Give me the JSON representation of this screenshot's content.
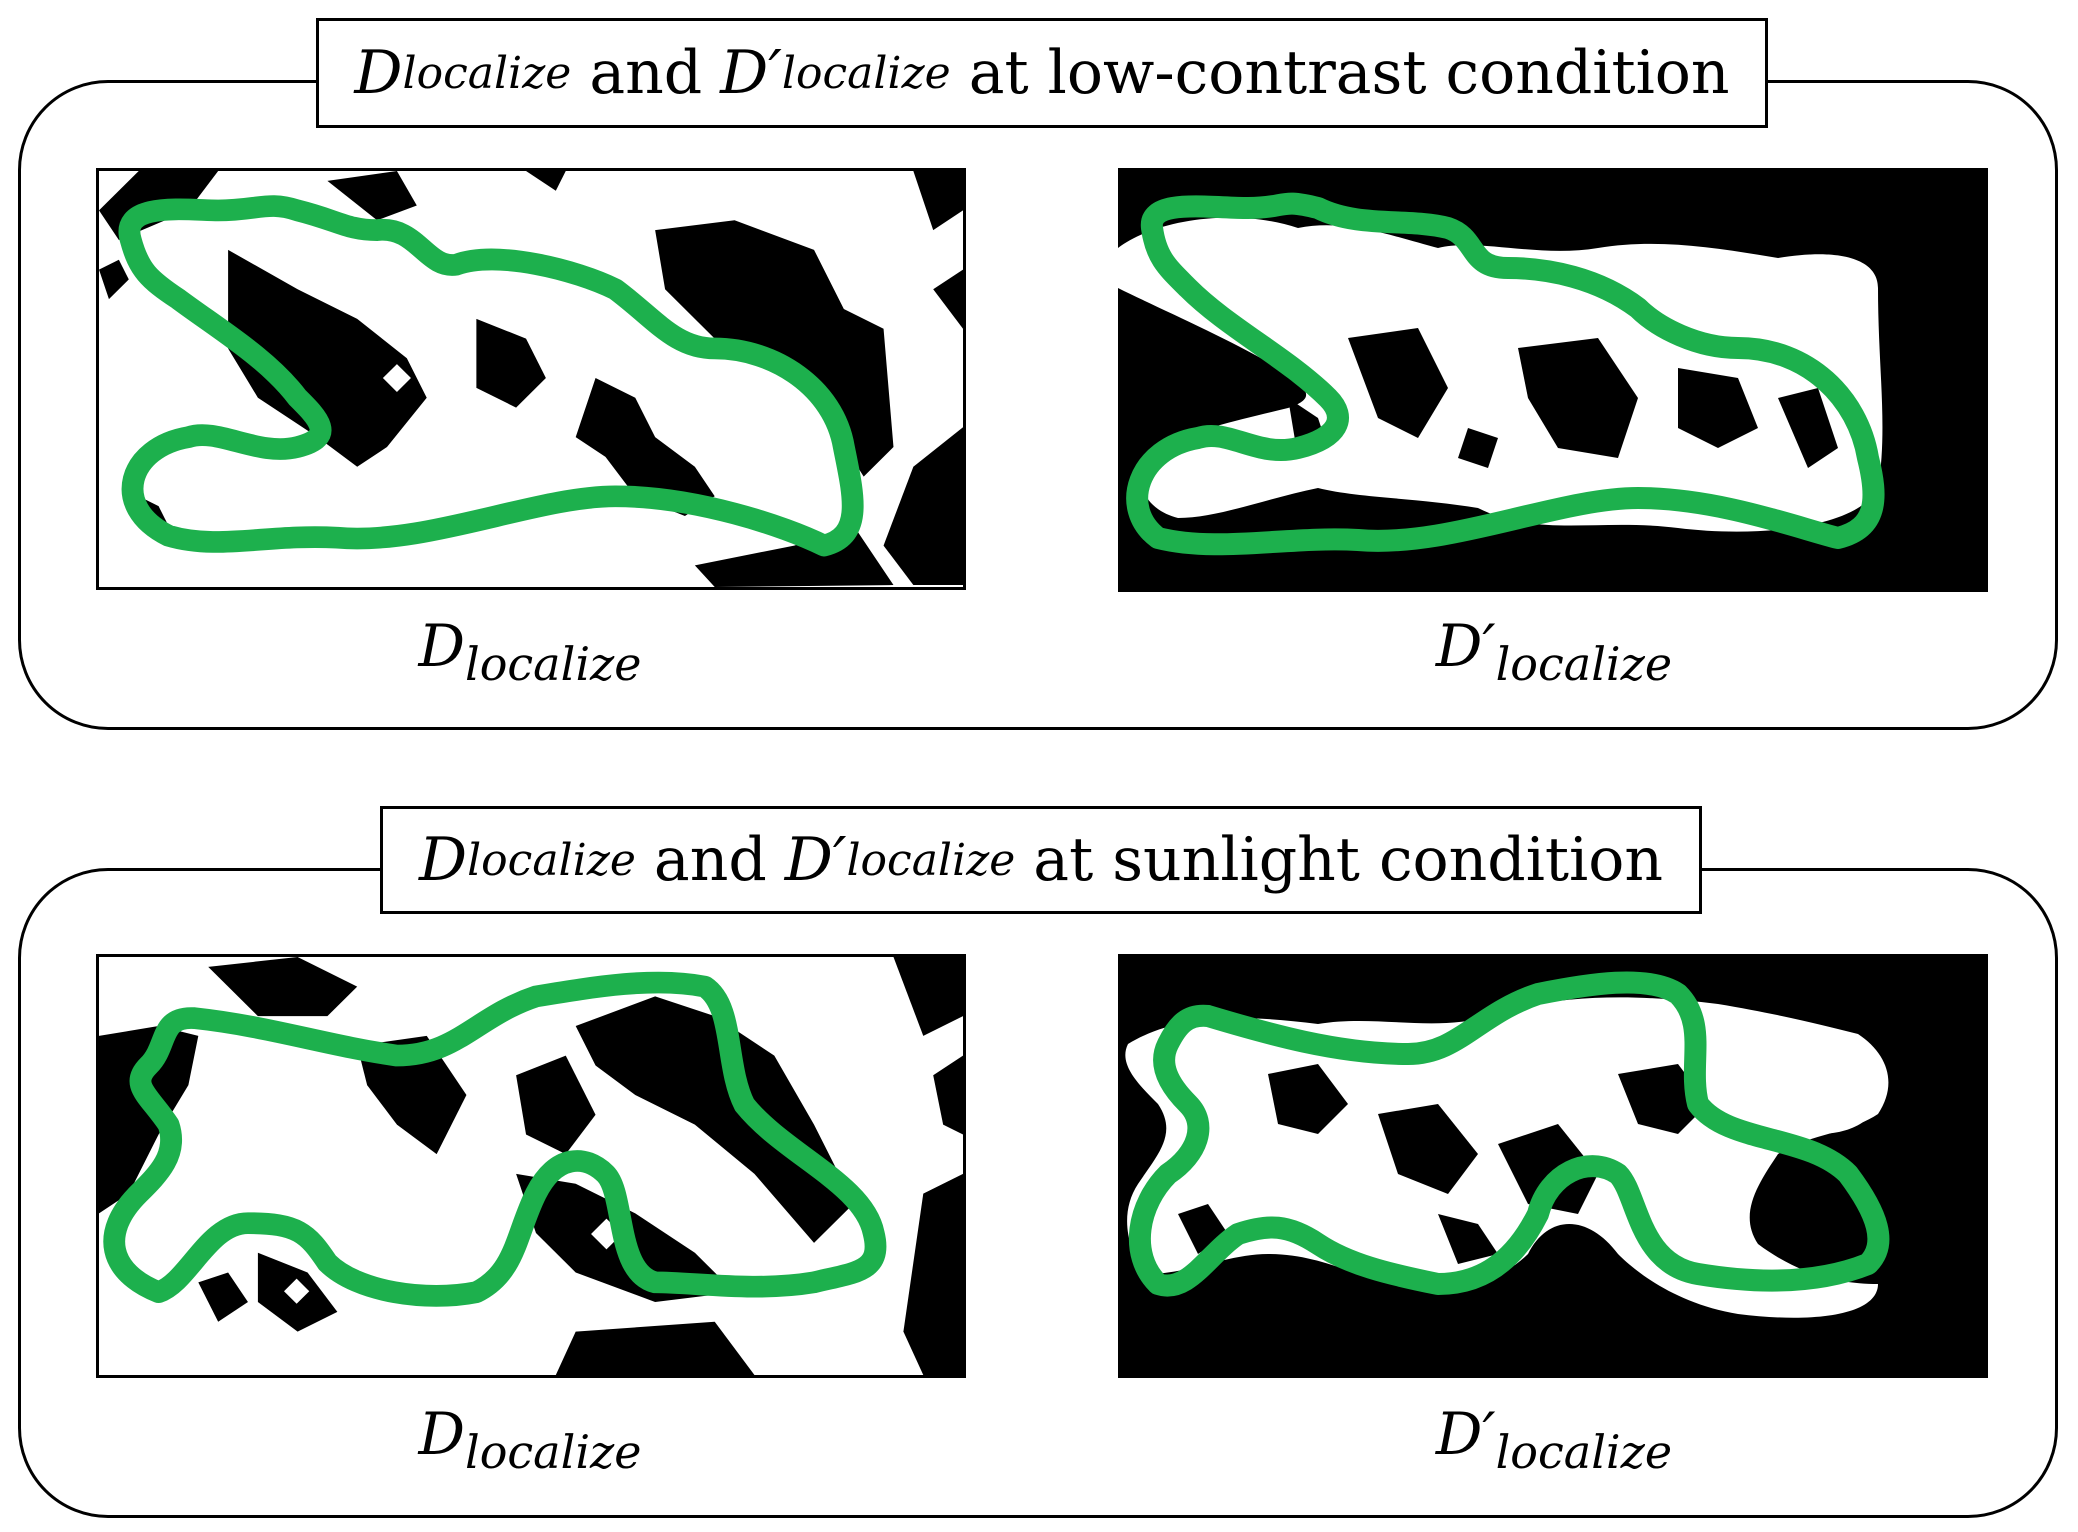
{
  "panels": [
    {
      "title": {
        "d1_main": "D",
        "d1_sub": "localize",
        "and": "and",
        "d2_main": "D′",
        "d2_sub": "localize",
        "condition": "at low-contrast condition"
      },
      "left_caption": {
        "main": "D",
        "sub": "localize"
      },
      "right_caption": {
        "main": "D′",
        "sub": "localize"
      }
    },
    {
      "title": {
        "d1_main": "D",
        "d1_sub": "localize",
        "and": "and",
        "d2_main": "D′",
        "d2_sub": "localize",
        "condition": "at sunlight condition"
      },
      "left_caption": {
        "main": "D",
        "sub": "localize"
      },
      "right_caption": {
        "main": "D′",
        "sub": "localize"
      }
    }
  ],
  "colors": {
    "outline": "#1db04d",
    "foreground": "#000000",
    "background": "#ffffff"
  }
}
